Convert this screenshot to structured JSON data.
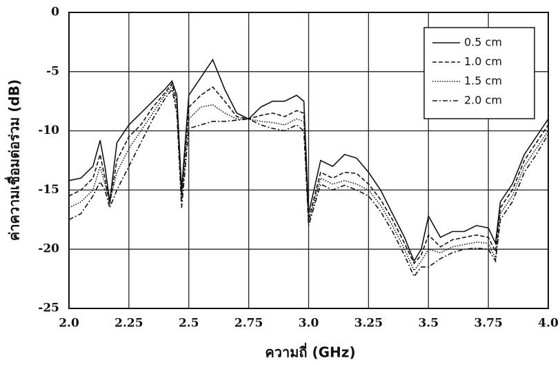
{
  "chart_data": {
    "type": "line",
    "xlabel": "ความถี่ (GHz)",
    "ylabel": "ค่าความเชื่อมต่อร่วม (dB)",
    "x": [
      2.0,
      2.05,
      2.1,
      2.13,
      2.15,
      2.17,
      2.2,
      2.25,
      2.3,
      2.35,
      2.4,
      2.43,
      2.45,
      2.47,
      2.5,
      2.55,
      2.6,
      2.65,
      2.7,
      2.75,
      2.8,
      2.85,
      2.9,
      2.95,
      2.98,
      3.0,
      3.05,
      3.1,
      3.15,
      3.2,
      3.25,
      3.3,
      3.35,
      3.4,
      3.44,
      3.47,
      3.5,
      3.55,
      3.6,
      3.65,
      3.7,
      3.75,
      3.78,
      3.8,
      3.85,
      3.9,
      3.95,
      4.0
    ],
    "series": [
      {
        "name": "0.5 cm",
        "color": "#111111",
        "dash": "none",
        "values": [
          -14.2,
          -14,
          -13,
          -10.8,
          -13,
          -16,
          -11,
          -9.5,
          -8.5,
          -7.5,
          -6.5,
          -5.8,
          -7,
          -15,
          -7,
          -5.5,
          -4,
          -6.5,
          -8.5,
          -9,
          -8,
          -7.5,
          -7.5,
          -7,
          -7.5,
          -17,
          -12.5,
          -13,
          -12,
          -12.3,
          -13.5,
          -15,
          -17,
          -19,
          -21,
          -20,
          -17.2,
          -19,
          -18.5,
          -18.5,
          -18,
          -18.2,
          -19.5,
          -16,
          -14.5,
          -12,
          -10.5,
          -9
        ]
      },
      {
        "name": "1.0 cm",
        "color": "#111111",
        "dash": "6,3",
        "values": [
          -15.5,
          -15,
          -14,
          -12,
          -14,
          -16.2,
          -12.5,
          -10.5,
          -9.5,
          -8,
          -6.8,
          -6,
          -7.5,
          -15.5,
          -8,
          -7,
          -6.3,
          -7.5,
          -8.8,
          -9,
          -8.7,
          -8.5,
          -8.8,
          -8.3,
          -8.5,
          -17.5,
          -13.5,
          -14,
          -13.5,
          -13.6,
          -14.5,
          -15.8,
          -17.5,
          -19.5,
          -21.2,
          -20.5,
          -18.8,
          -19.8,
          -19.2,
          -19,
          -18.8,
          -19,
          -20.2,
          -16.5,
          -15,
          -12.5,
          -11,
          -9.5
        ]
      },
      {
        "name": "1.5 cm",
        "color": "#111111",
        "dash": "1.5,2",
        "values": [
          -16.5,
          -16,
          -15,
          -13,
          -14.5,
          -16,
          -13.5,
          -11.5,
          -10,
          -8.5,
          -7,
          -6.2,
          -8,
          -16,
          -9,
          -8,
          -7.8,
          -8.5,
          -9,
          -9,
          -9.2,
          -9.3,
          -9.5,
          -9,
          -9.2,
          -17.8,
          -14,
          -14.5,
          -14.2,
          -14.5,
          -15,
          -16.3,
          -18,
          -20,
          -21.8,
          -21,
          -20,
          -20.3,
          -19.8,
          -19.6,
          -19.4,
          -19.5,
          -20.8,
          -17,
          -15.5,
          -13,
          -11.5,
          -10
        ]
      },
      {
        "name": "2.0 cm",
        "color": "#111111",
        "dash": "7,3,2,3",
        "values": [
          -17.5,
          -17,
          -15.5,
          -14.3,
          -15,
          -16.5,
          -15,
          -13,
          -11,
          -9,
          -7.3,
          -6.5,
          -8.5,
          -16.5,
          -9.8,
          -9.5,
          -9.2,
          -9.2,
          -9.1,
          -9,
          -9.5,
          -9.8,
          -10,
          -9.5,
          -10,
          -18,
          -14.5,
          -15,
          -14.6,
          -15,
          -15.5,
          -16.8,
          -18.5,
          -20.5,
          -22.3,
          -21.5,
          -21.5,
          -20.8,
          -20.3,
          -20,
          -19.9,
          -20,
          -21,
          -17.5,
          -16,
          -13.5,
          -12,
          -10.3
        ]
      }
    ],
    "xlim": [
      2.0,
      4.0
    ],
    "xticks": [
      {
        "value": 2.0,
        "label": "2.0"
      },
      2.25,
      2.5,
      2.75,
      {
        "value": 3.0,
        "label": "3.0"
      },
      3.25,
      3.5,
      3.75,
      {
        "value": 4.0,
        "label": "4.0"
      }
    ],
    "ylim": [
      -25,
      0
    ],
    "yticks": [
      0,
      -5,
      -10,
      -15,
      -20,
      -25
    ],
    "grid": true,
    "legend": "upper right"
  }
}
